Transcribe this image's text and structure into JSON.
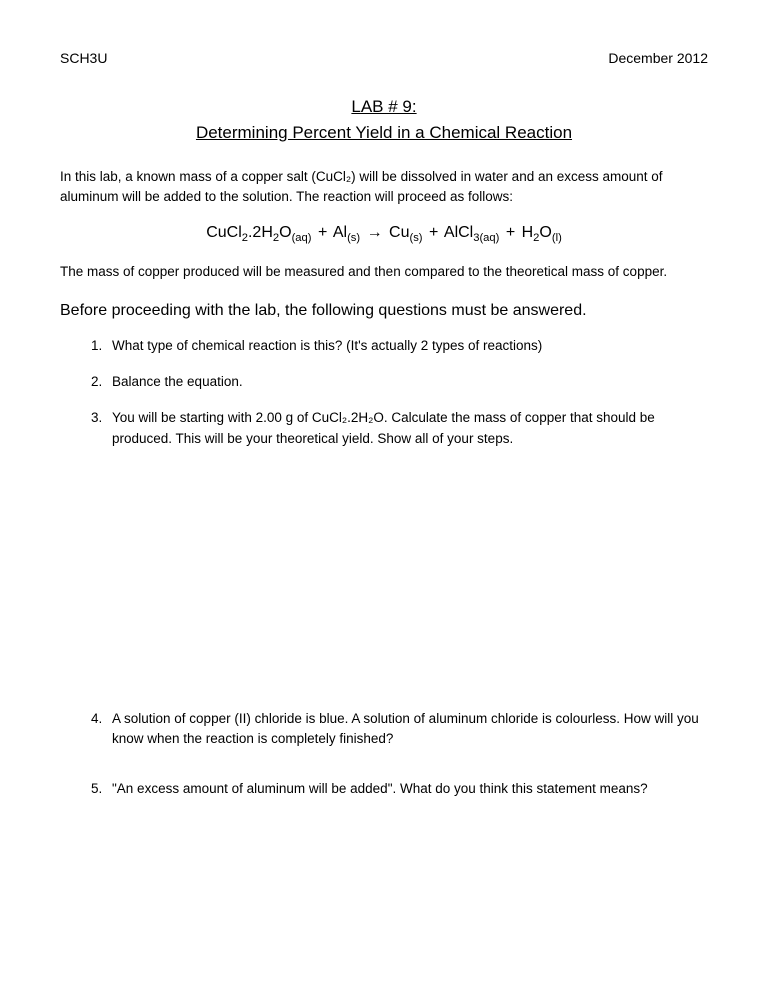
{
  "header": {
    "left": "SCH3U",
    "right": "December 2012"
  },
  "title": {
    "line1": "LAB # 9:",
    "line2": "Determining Percent Yield in a Chemical Reaction"
  },
  "intro": "In this lab, a known mass of a copper salt (CuCl₂) will be dissolved in water and an excess amount of aluminum will be added to the solution. The reaction will proceed as follows:",
  "equation": {
    "r1": "CuCl",
    "r1_sub1": "2",
    "r1_mid": ".2H",
    "r1_sub2": "2",
    "r1_end": "O",
    "r1_state": "(aq)",
    "plus": "  +  ",
    "r2": "Al",
    "r2_state": "(s)",
    "arrow": "  →  ",
    "p1": "Cu",
    "p1_state": "(s)",
    "p2": "AlCl",
    "p2_sub": "3(aq)",
    "p3": "H",
    "p3_sub": "2",
    "p3_end": "O",
    "p3_state": "(l)"
  },
  "post_equation": "The mass of copper produced will be measured and then compared to the theoretical mass of copper.",
  "pre_questions": "Before proceeding with the lab, the following questions must be answered.",
  "questions": {
    "q1": "What type of chemical reaction is this? (It's actually 2 types of reactions)",
    "q2": "Balance the equation.",
    "q3": "You will be starting with 2.00 g of CuCl₂.2H₂O. Calculate the mass of copper that should be produced. This will be your theoretical yield. Show all of your steps.",
    "q4": " A solution of copper (II) chloride is blue. A solution of aluminum chloride is colourless. How will you know when the reaction is completely finished?",
    "q5": "\"An excess amount of aluminum will be added\". What do you think this statement means?"
  }
}
